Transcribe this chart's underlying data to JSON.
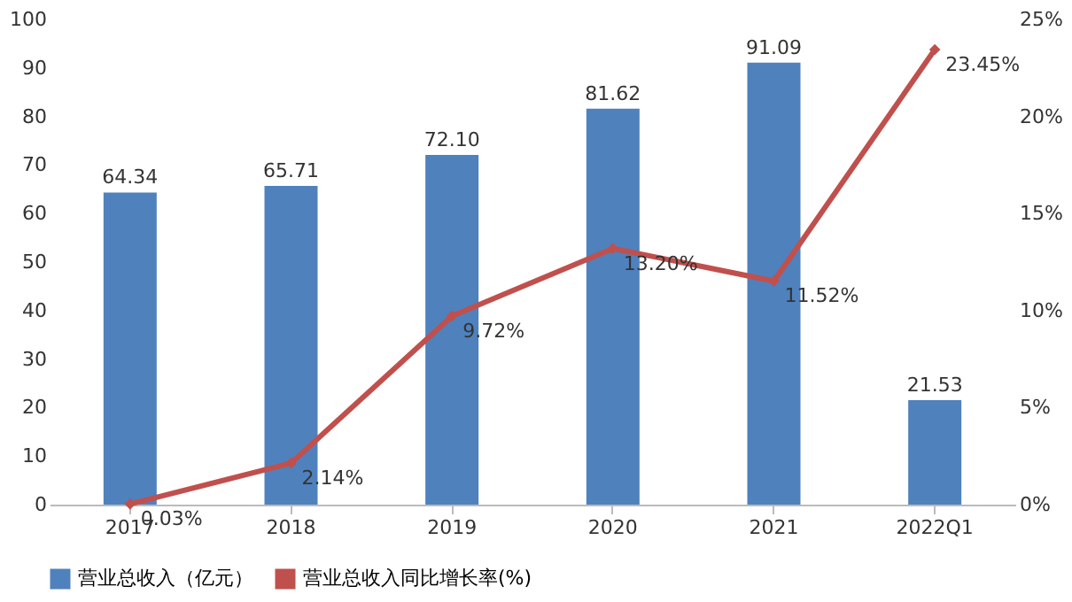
{
  "chart_data": {
    "type": "bar",
    "categories": [
      "2017",
      "2018",
      "2019",
      "2020",
      "2021",
      "2022Q1"
    ],
    "series": [
      {
        "name": "营业总收入（亿元）",
        "color": "#4f81bd",
        "values": [
          64.34,
          65.71,
          72.1,
          81.62,
          91.09,
          21.53
        ],
        "value_labels": [
          "64.34",
          "65.71",
          "72.10",
          "81.62",
          "91.09",
          "21.53"
        ]
      },
      {
        "name": "营业总收入同比增长率(%)",
        "type": "line",
        "axis": "y2",
        "color": "#c0504d",
        "marker": "diamond",
        "line_style": "solid",
        "values": [
          0.03,
          2.14,
          9.72,
          13.2,
          11.52,
          23.45
        ],
        "value_labels": [
          "0.03%",
          "2.14%",
          "9.72%",
          "13.20%",
          "11.52%",
          "23.45%"
        ]
      }
    ],
    "ylim": [
      0,
      100
    ],
    "yticks": [
      0,
      10,
      20,
      30,
      40,
      50,
      60,
      70,
      80,
      90,
      100
    ],
    "y2lim": [
      0,
      25
    ],
    "y2ticks": [
      {
        "value": 0,
        "label": "0%"
      },
      {
        "value": 5,
        "label": "5%"
      },
      {
        "value": 10,
        "label": "10%"
      },
      {
        "value": 15,
        "label": "15%"
      },
      {
        "value": 20,
        "label": "20%"
      },
      {
        "value": 25,
        "label": "25%"
      }
    ],
    "grid": false,
    "legend": "bottom"
  }
}
